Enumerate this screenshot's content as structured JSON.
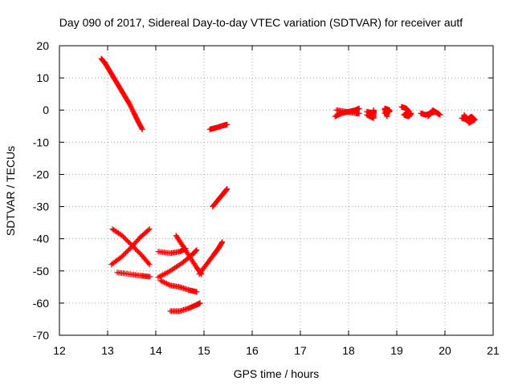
{
  "chart_data": {
    "type": "scatter",
    "title": "Day 090 of 2017, Sidereal Day-to-day VTEC variation (SDTVAR) for receiver autf",
    "xlabel": "GPS time / hours",
    "ylabel": "SDTVAR / TECUs",
    "xlim": [
      12,
      21
    ],
    "ylim": [
      -70,
      20
    ],
    "x_ticks": [
      "12",
      "13",
      "14",
      "15",
      "16",
      "17",
      "18",
      "19",
      "20",
      "21"
    ],
    "y_ticks": [
      "20",
      "10",
      "0",
      "-10",
      "-20",
      "-30",
      "-40",
      "-50",
      "-60",
      "-70"
    ],
    "grid": true,
    "marker": "plus",
    "color": "#ff0000",
    "series": [
      {
        "values": [
          [
            12.87,
            16
          ],
          [
            12.95,
            14.5
          ],
          [
            13.05,
            12
          ],
          [
            13.15,
            9.5
          ],
          [
            13.25,
            7
          ],
          [
            13.35,
            4.5
          ],
          [
            13.45,
            2
          ],
          [
            13.55,
            -1
          ],
          [
            13.63,
            -3.5
          ],
          [
            13.72,
            -6
          ]
        ]
      },
      {
        "values": [
          [
            15.12,
            -6
          ],
          [
            15.25,
            -5.5
          ],
          [
            15.4,
            -4.8
          ],
          [
            15.48,
            -4.5
          ]
        ]
      },
      {
        "values": [
          [
            15.18,
            -30
          ],
          [
            15.3,
            -27.8
          ],
          [
            15.4,
            -26
          ],
          [
            15.48,
            -24.5
          ]
        ]
      },
      {
        "values": [
          [
            13.1,
            -37
          ],
          [
            13.3,
            -39
          ],
          [
            13.5,
            -42
          ],
          [
            13.7,
            -45
          ],
          [
            13.87,
            -48
          ]
        ]
      },
      {
        "values": [
          [
            13.08,
            -48
          ],
          [
            13.3,
            -45.5
          ],
          [
            13.5,
            -42.5
          ],
          [
            13.68,
            -39.5
          ],
          [
            13.87,
            -37
          ]
        ]
      },
      {
        "values": [
          [
            13.2,
            -50.5
          ],
          [
            13.45,
            -51
          ],
          [
            13.7,
            -51.5
          ],
          [
            13.88,
            -51.8
          ]
        ]
      },
      {
        "values": [
          [
            14.05,
            -44
          ],
          [
            14.3,
            -44.5
          ],
          [
            14.5,
            -44
          ],
          [
            14.62,
            -43
          ]
        ]
      },
      {
        "values": [
          [
            14.05,
            -52
          ],
          [
            14.3,
            -50
          ],
          [
            14.55,
            -47.5
          ],
          [
            14.75,
            -45
          ],
          [
            14.85,
            -43.5
          ]
        ]
      },
      {
        "values": [
          [
            14.1,
            -53
          ],
          [
            14.3,
            -54.5
          ],
          [
            14.5,
            -55
          ],
          [
            14.7,
            -56
          ],
          [
            14.85,
            -56.5
          ]
        ]
      },
      {
        "values": [
          [
            14.42,
            -39
          ],
          [
            14.55,
            -42
          ],
          [
            14.7,
            -45.5
          ],
          [
            14.85,
            -49
          ],
          [
            14.95,
            -51
          ]
        ]
      },
      {
        "values": [
          [
            14.9,
            -51
          ],
          [
            15.05,
            -48
          ],
          [
            15.2,
            -45
          ],
          [
            15.3,
            -43
          ],
          [
            15.38,
            -41
          ]
        ]
      },
      {
        "values": [
          [
            14.3,
            -62.5
          ],
          [
            14.5,
            -62.5
          ],
          [
            14.7,
            -61.5
          ],
          [
            14.85,
            -60.5
          ],
          [
            14.92,
            -60
          ]
        ]
      },
      {
        "values": [
          [
            17.72,
            -2
          ],
          [
            17.85,
            -1
          ],
          [
            18,
            -0.5
          ],
          [
            18.15,
            0
          ],
          [
            18.22,
            0.5
          ]
        ]
      },
      {
        "values": [
          [
            17.75,
            0
          ],
          [
            17.95,
            -0.5
          ],
          [
            18.15,
            -1
          ],
          [
            18.22,
            -1
          ]
        ]
      },
      {
        "values": [
          [
            18.38,
            -0.5
          ],
          [
            18.52,
            -1
          ],
          [
            18.52,
            0
          ],
          [
            18.52,
            -2.5
          ],
          [
            18.38,
            -1.5
          ]
        ]
      },
      {
        "values": [
          [
            18.75,
            -1
          ],
          [
            18.85,
            -0.5
          ],
          [
            18.85,
            0
          ],
          [
            18.75,
            0.5
          ],
          [
            18.8,
            -2
          ]
        ]
      },
      {
        "values": [
          [
            19.1,
            1
          ],
          [
            19.2,
            0.5
          ],
          [
            19.25,
            -0.5
          ],
          [
            19.15,
            -1.5
          ],
          [
            19.25,
            -2
          ],
          [
            19.3,
            -1
          ]
        ]
      },
      {
        "values": [
          [
            19.5,
            -1
          ],
          [
            19.6,
            -1.5
          ],
          [
            19.7,
            -1
          ],
          [
            19.8,
            -0.5
          ],
          [
            19.9,
            -1.5
          ],
          [
            19.75,
            0
          ],
          [
            19.65,
            -2
          ]
        ]
      },
      {
        "values": [
          [
            20.35,
            -2.5
          ],
          [
            20.45,
            -3
          ],
          [
            20.55,
            -2
          ],
          [
            20.62,
            -3
          ],
          [
            20.5,
            -4
          ],
          [
            20.4,
            -1.5
          ]
        ]
      }
    ]
  }
}
